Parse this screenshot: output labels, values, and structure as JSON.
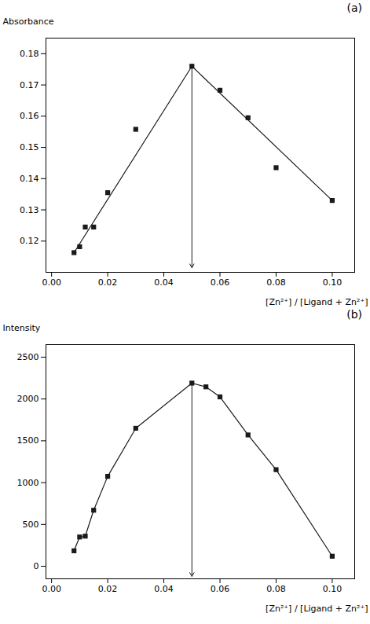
{
  "chart_data": [
    {
      "type": "scatter",
      "title": "(a)",
      "xlabel": "[Zn²⁺] / [Ligand + Zn²⁺]",
      "ylabel": "Absorbance",
      "xlim": [
        -0.002,
        0.108
      ],
      "ylim": [
        0.11,
        0.185
      ],
      "xticks": [
        {
          "value": 0,
          "label": "0.00"
        },
        0.02,
        0.04,
        0.06,
        0.08,
        {
          "value": 0.1,
          "label": "0.10"
        }
      ],
      "yticks": [
        0.12,
        0.13,
        0.14,
        0.15,
        0.16,
        0.17,
        0.18
      ],
      "grid": false,
      "series": [
        {
          "type": "scatter",
          "marker": "square",
          "color": "#1a1a1a",
          "x": [
            0.008,
            0.01,
            0.012,
            0.015,
            0.02,
            0.03,
            0.05,
            0.06,
            0.07,
            0.08,
            0.1
          ],
          "values": [
            0.1163,
            0.1182,
            0.1245,
            0.1245,
            0.1355,
            0.1558,
            0.176,
            0.1683,
            0.1595,
            0.1435,
            0.133
          ]
        },
        {
          "type": "line",
          "line_style": "solid",
          "color": "#1a1a1a",
          "x": [
            0.008,
            0.05
          ],
          "values": [
            0.1163,
            0.176
          ]
        },
        {
          "type": "line",
          "line_style": "solid",
          "color": "#1a1a1a",
          "x": [
            0.05,
            0.1
          ],
          "values": [
            0.176,
            0.133
          ]
        }
      ],
      "arrow": {
        "x": 0.05,
        "y_top": 0.176,
        "y_bottom": 0.1115,
        "color": "#1a1a1a"
      }
    },
    {
      "type": "scatter",
      "title": "(b)",
      "xlabel": "[Zn²⁺] / [Ligand + Zn²⁺]",
      "ylabel": "Intensity",
      "xlim": [
        -0.002,
        0.108
      ],
      "ylim": [
        -150,
        2650
      ],
      "xticks": [
        {
          "value": 0,
          "label": "0.00"
        },
        0.02,
        0.04,
        0.06,
        0.08,
        {
          "value": 0.1,
          "label": "0.10"
        }
      ],
      "yticks": [
        0,
        500,
        1000,
        1500,
        2000,
        2500
      ],
      "grid": false,
      "series": [
        {
          "type": "line",
          "line_style": "solid",
          "color": "#1a1a1a",
          "x": [
            0.008,
            0.01,
            0.012,
            0.015,
            0.02,
            0.03,
            0.05,
            0.055,
            0.06,
            0.07,
            0.08,
            0.1
          ],
          "values": [
            185,
            350,
            360,
            670,
            1075,
            1650,
            2190,
            2145,
            2025,
            1570,
            1155,
            120
          ]
        },
        {
          "type": "scatter",
          "marker": "square",
          "color": "#1a1a1a",
          "x": [
            0.008,
            0.01,
            0.012,
            0.015,
            0.02,
            0.03,
            0.05,
            0.055,
            0.06,
            0.07,
            0.08,
            0.1
          ],
          "values": [
            185,
            350,
            360,
            670,
            1075,
            1650,
            2190,
            2145,
            2025,
            1570,
            1155,
            120
          ]
        }
      ],
      "arrow": {
        "x": 0.05,
        "y_top": 2190,
        "y_bottom": -120,
        "color": "#1a1a1a"
      }
    }
  ]
}
